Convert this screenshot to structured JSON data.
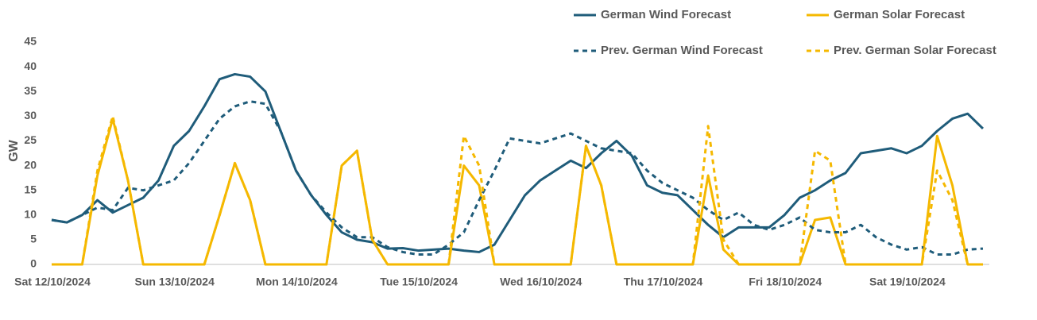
{
  "chart_data": {
    "type": "line",
    "y_label": "GW",
    "categories": [
      "Sat 12/10/2024",
      null,
      null,
      null,
      null,
      null,
      null,
      null,
      "Sun 13/10/2024",
      null,
      null,
      null,
      null,
      null,
      null,
      null,
      "Mon 14/10/2024",
      null,
      null,
      null,
      null,
      null,
      null,
      null,
      "Tue 15/10/2024",
      null,
      null,
      null,
      null,
      null,
      null,
      null,
      "Wed 16/10/2024",
      null,
      null,
      null,
      null,
      null,
      null,
      null,
      "Thu 17/10/2024",
      null,
      null,
      null,
      null,
      null,
      null,
      null,
      "Fri 18/10/2024",
      null,
      null,
      null,
      null,
      null,
      null,
      null,
      "Sat 19/10/2024",
      null,
      null,
      null,
      null,
      null
    ],
    "series": [
      {
        "name": "German Wind Forecast",
        "color": "#1f5c7a",
        "style": "solid",
        "values": [
          9,
          8.5,
          10,
          13,
          10.5,
          12,
          13.5,
          17,
          24,
          27,
          32,
          37.5,
          38.5,
          38,
          35,
          27,
          19,
          14,
          10,
          6.5,
          5,
          4.5,
          3.2,
          3.3,
          2.8,
          3,
          3.2,
          2.8,
          2.5,
          4,
          9,
          14,
          17,
          19,
          21,
          19.5,
          22.5,
          25,
          22,
          16,
          14.5,
          14,
          11,
          8,
          5.5,
          7.5,
          7.5,
          7.5,
          10,
          13.5,
          15,
          17,
          18.5,
          22.5,
          23,
          23.5,
          22.5,
          24,
          27,
          29.5,
          30.5,
          27.5
        ]
      },
      {
        "name": "German Solar Forecast",
        "color": "#f5b800",
        "style": "solid",
        "values": [
          0,
          0,
          0,
          18,
          29.5,
          17,
          0,
          0,
          0,
          0,
          0,
          10,
          20.5,
          13,
          0,
          0,
          0,
          0,
          0,
          20,
          23,
          5,
          0,
          0,
          0,
          0,
          0,
          20,
          16,
          0,
          0,
          0,
          0,
          0,
          0,
          24,
          16,
          0,
          0,
          0,
          0,
          0,
          0,
          18,
          3,
          0,
          0,
          0,
          0,
          0,
          9,
          9.5,
          0,
          0,
          0,
          0,
          0,
          0,
          26,
          16,
          0,
          0
        ]
      },
      {
        "name": "Prev. German Wind Forecast",
        "color": "#1f5c7a",
        "style": "dashed",
        "values": [
          9,
          8.5,
          10,
          11.5,
          11,
          15.5,
          15,
          16,
          17,
          20.5,
          25,
          29.5,
          32,
          33,
          32.5,
          27,
          19,
          14,
          10.5,
          7.5,
          5.5,
          5.5,
          3.5,
          2.5,
          2,
          2,
          4,
          6.5,
          13,
          19,
          25.5,
          25,
          24.5,
          25.5,
          26.5,
          25,
          23.5,
          23,
          22.5,
          19,
          16.5,
          15,
          13.5,
          11,
          9,
          10.5,
          8,
          7,
          8,
          9.5,
          7,
          6.5,
          6.5,
          8,
          5.5,
          4,
          3,
          3.5,
          2,
          2,
          3,
          3.2
        ]
      },
      {
        "name": "Prev. German Solar Forecast",
        "color": "#f5b800",
        "style": "dashed",
        "values": [
          0,
          0,
          0,
          19,
          30,
          17,
          0,
          0,
          0,
          0,
          0,
          10,
          20.5,
          13,
          0,
          0,
          0,
          0,
          0,
          20,
          23,
          5,
          0,
          0,
          0,
          0,
          0,
          26,
          20,
          0,
          0,
          0,
          0,
          0,
          0,
          24,
          16,
          0,
          0,
          0,
          0,
          0,
          0,
          28,
          5,
          0,
          0,
          0,
          0,
          0,
          23,
          21,
          0,
          0,
          0,
          0,
          0,
          0,
          19,
          13,
          0,
          0
        ]
      }
    ],
    "ylim": [
      0,
      45
    ],
    "yticks": [
      0,
      5,
      10,
      15,
      20,
      25,
      30,
      35,
      40,
      45
    ],
    "grid": false,
    "legend": "top-right"
  }
}
